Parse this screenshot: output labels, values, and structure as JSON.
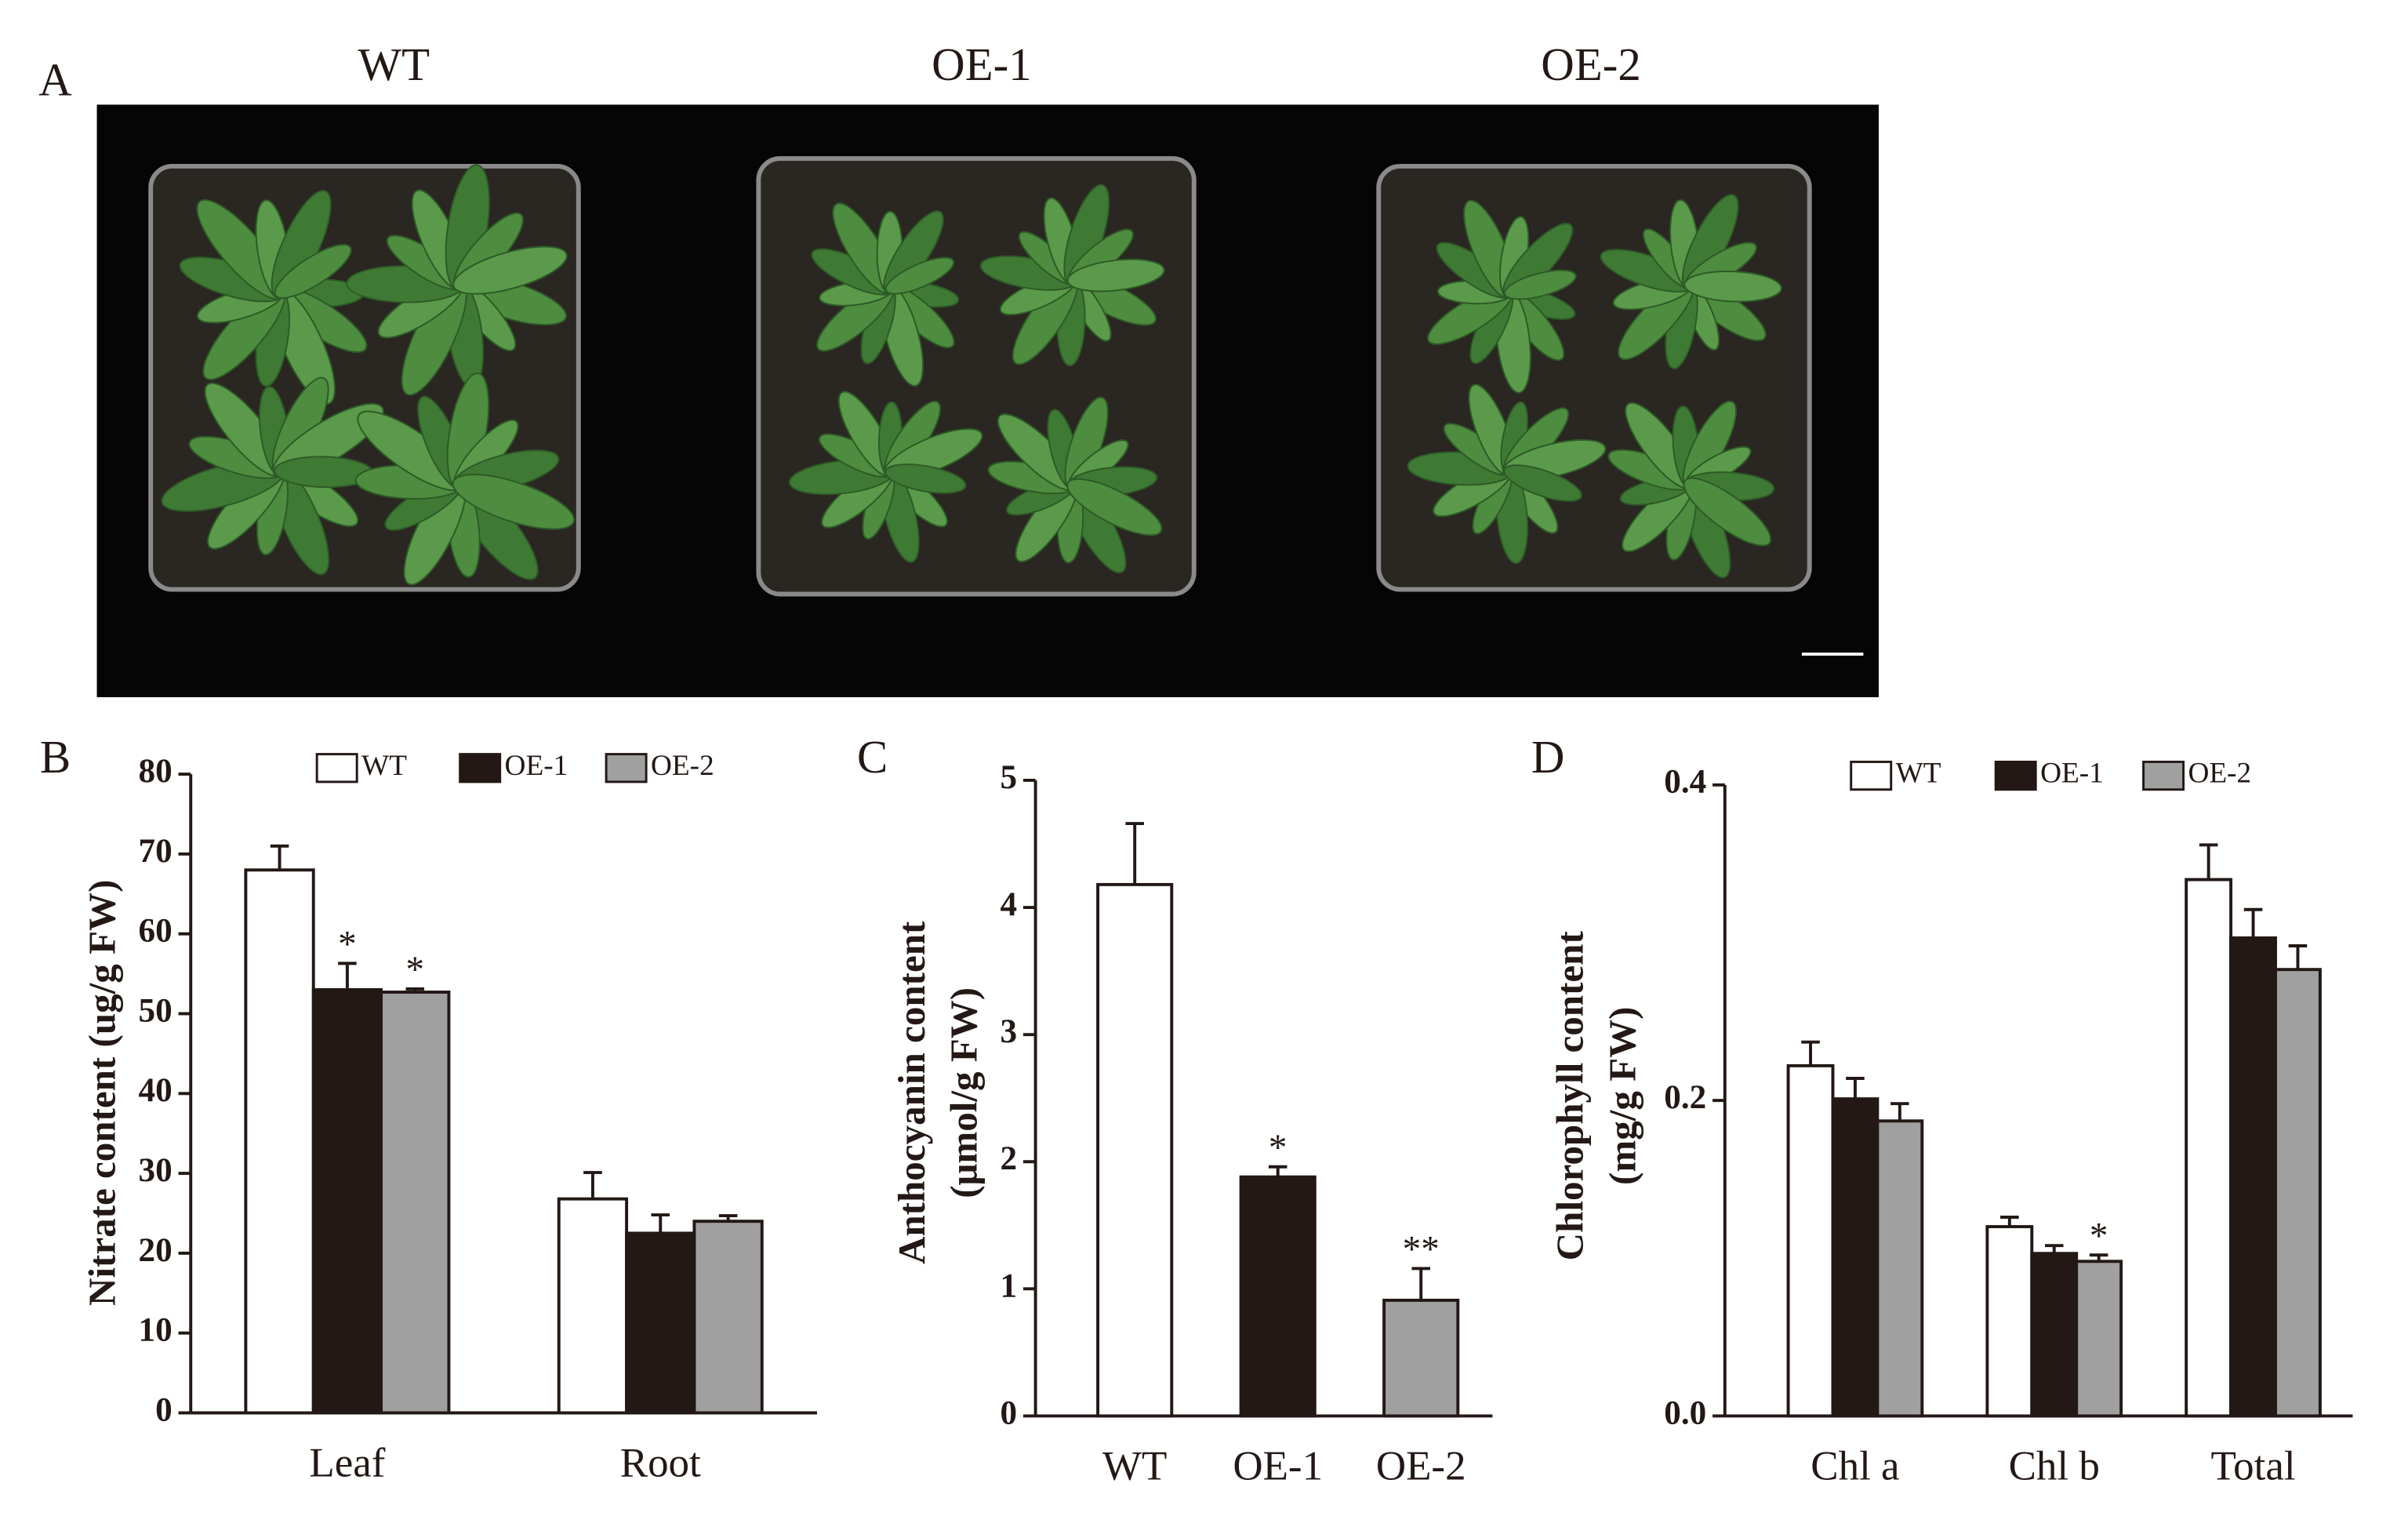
{
  "photo_panel": {
    "label": "A",
    "labels": [
      "WT",
      "OE-1",
      "OE-2"
    ]
  },
  "chart_data": [
    {
      "type": "bar",
      "panel_label": "B",
      "y_label": [
        "Nitrate content (ug/g FW)"
      ],
      "categories": [
        "Leaf",
        "Root"
      ],
      "series": [
        {
          "name": "WT",
          "color": "#ffffff",
          "values": [
            68,
            26.8
          ],
          "errors": [
            3,
            3.3
          ],
          "significance": [
            null,
            null
          ]
        },
        {
          "name": "OE-1",
          "color": "#231815",
          "values": [
            53,
            22.5
          ],
          "errors": [
            3.3,
            2.3
          ],
          "significance": [
            "*",
            null
          ]
        },
        {
          "name": "OE-2",
          "color": "#a0a0a0",
          "values": [
            52.7,
            24
          ],
          "errors": [
            0.4,
            0.7
          ],
          "significance": [
            "*",
            null
          ]
        }
      ],
      "ylim": [
        0,
        80
      ],
      "yticks": [
        0,
        10,
        20,
        30,
        40,
        50,
        60,
        70,
        80
      ],
      "legend": "top"
    },
    {
      "type": "bar",
      "panel_label": "C",
      "y_label": [
        "Anthocyanin content",
        "(μmol/g FW)"
      ],
      "categories": [
        "WT",
        "OE-1",
        "OE-2"
      ],
      "values": [
        4.18,
        1.88,
        0.91
      ],
      "errors": [
        0.48,
        0.08,
        0.25
      ],
      "colors": [
        "#ffffff",
        "#231815",
        "#a0a0a0"
      ],
      "significance": [
        null,
        "*",
        "**"
      ],
      "ylim": [
        0,
        5
      ],
      "yticks": [
        0,
        1,
        2,
        3,
        4,
        5
      ]
    },
    {
      "type": "bar",
      "panel_label": "D",
      "y_label": [
        "Chlorophyll content",
        "(mg/g FW)"
      ],
      "categories": [
        "Chl a",
        "Chl b",
        "Total"
      ],
      "series": [
        {
          "name": "WT",
          "color": "#ffffff",
          "values": [
            0.222,
            0.12,
            0.34
          ],
          "errors": [
            0.015,
            0.006,
            0.022
          ],
          "significance": [
            null,
            null,
            null
          ]
        },
        {
          "name": "OE-1",
          "color": "#231815",
          "values": [
            0.201,
            0.103,
            0.303
          ],
          "errors": [
            0.013,
            0.005,
            0.018
          ],
          "significance": [
            null,
            null,
            null
          ]
        },
        {
          "name": "OE-2",
          "color": "#a0a0a0",
          "values": [
            0.187,
            0.098,
            0.283
          ],
          "errors": [
            0.011,
            0.004,
            0.015
          ],
          "significance": [
            null,
            "*",
            null
          ]
        }
      ],
      "ylim": [
        0,
        0.4
      ],
      "yticks": [
        {
          "value": 0,
          "label": "0.0"
        },
        {
          "value": 0.2,
          "label": "0.2"
        },
        {
          "value": 0.4,
          "label": "0.4"
        }
      ],
      "legend": "top"
    }
  ]
}
